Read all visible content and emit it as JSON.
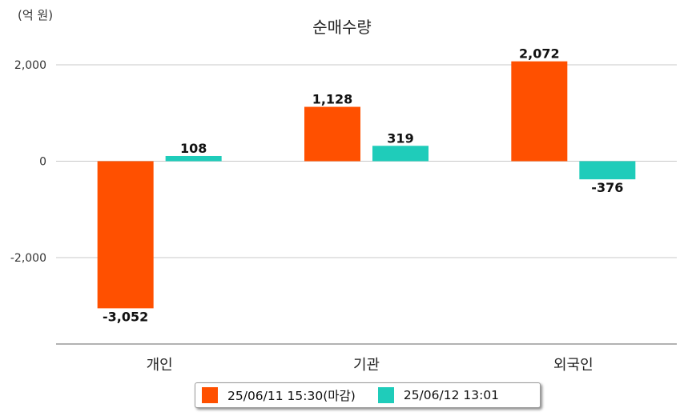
{
  "chart_data": {
    "type": "bar",
    "title": "순매수량",
    "unit_label": "(억 원)",
    "categories": [
      "개인",
      "기관",
      "외국인"
    ],
    "series": [
      {
        "name": "25/06/11 15:30(마감)",
        "color": "#FF5000",
        "values": [
          -3052,
          1128,
          2072
        ],
        "labels": [
          "-3,052",
          "1,128",
          "2,072"
        ]
      },
      {
        "name": "25/06/12 13:01",
        "color": "#1FCCBA",
        "values": [
          108,
          319,
          -376
        ],
        "labels": [
          "108",
          "319",
          "-376"
        ]
      }
    ],
    "yticks": [
      2000,
      0,
      -2000
    ],
    "ytick_labels": [
      "2,000",
      "0",
      "-2,000"
    ],
    "ylim": [
      -3800,
      2500
    ],
    "grid": true,
    "legend_position": "bottom"
  }
}
